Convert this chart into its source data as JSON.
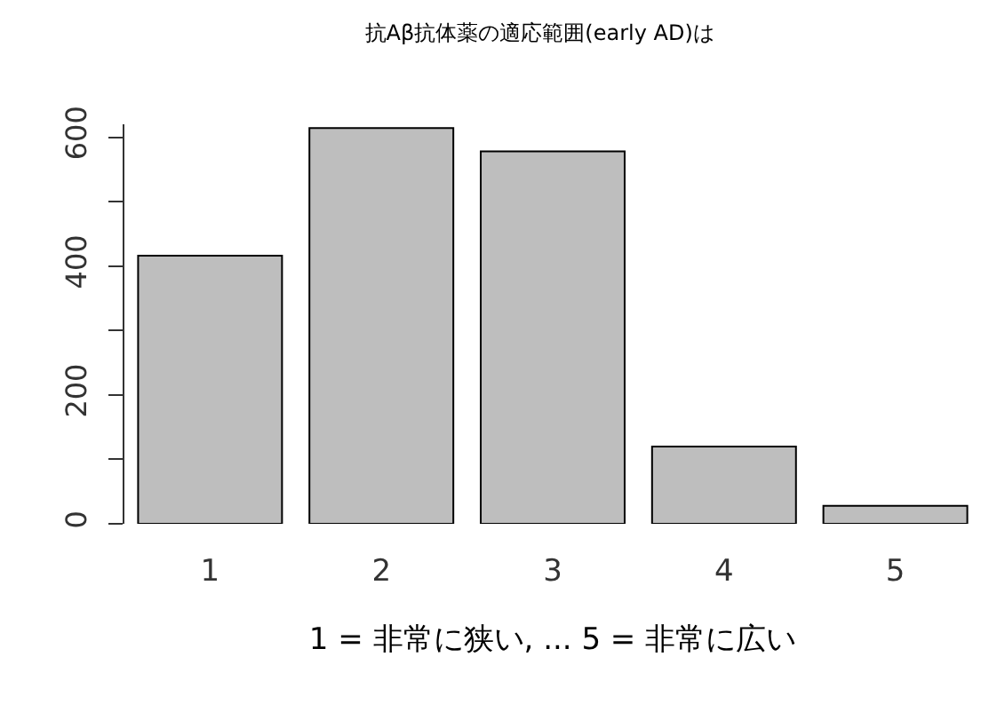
{
  "chart_data": {
    "type": "bar",
    "title": "抗Aβ抗体薬の適応範囲(early AD)は",
    "xlabel": "1 = 非常に狭い, ... 5 = 非常に広い",
    "categories": [
      "1",
      "2",
      "3",
      "4",
      "5"
    ],
    "values": [
      416,
      614,
      578,
      120,
      28
    ],
    "color": "#bebebe",
    "ylim": [
      0,
      620
    ],
    "yticks": [
      0,
      {
        "value": 100,
        "label": null
      },
      200,
      {
        "value": 300,
        "label": null
      },
      400,
      {
        "value": 500,
        "label": null
      },
      600
    ],
    "grid": false
  }
}
